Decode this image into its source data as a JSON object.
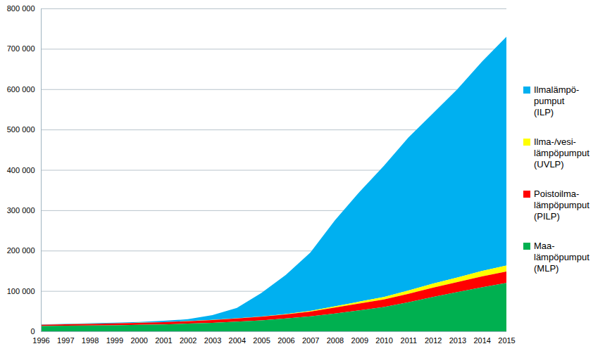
{
  "chart_data": {
    "type": "area",
    "stacked": true,
    "grid": true,
    "legend": "right",
    "x": [
      1996,
      1997,
      1998,
      1999,
      2000,
      2001,
      2002,
      2003,
      2004,
      2005,
      2006,
      2007,
      2008,
      2009,
      2010,
      2011,
      2012,
      2013,
      2014,
      2015
    ],
    "xlim": [
      1996,
      2015
    ],
    "xticks": [
      1996,
      1997,
      1998,
      1999,
      2000,
      2001,
      2002,
      2003,
      2004,
      2005,
      2006,
      2007,
      2008,
      2009,
      2010,
      2011,
      2012,
      2013,
      2014,
      2015
    ],
    "ylim": [
      0,
      800000
    ],
    "yticks": [
      0,
      {
        "value": 100000,
        "label": "100 000"
      },
      {
        "value": 200000,
        "label": "200 000"
      },
      {
        "value": 300000,
        "label": "300 000"
      },
      {
        "value": 400000,
        "label": "400 000"
      },
      {
        "value": 500000,
        "label": "500 000"
      },
      {
        "value": 600000,
        "label": "600 000"
      },
      {
        "value": 700000,
        "label": "700 000"
      },
      {
        "value": 800000,
        "label": "800 000"
      }
    ],
    "series": [
      {
        "name": "Ilmalämpö-\npumput\n(ILP)",
        "color": "#00b0f0",
        "values": [
          900,
          900,
          1400,
          1800,
          1800,
          3300,
          4700,
          11700,
          25600,
          58500,
          97200,
          144500,
          213000,
          271500,
          325000,
          379000,
          422000,
          466500,
          518500,
          567000
        ]
      },
      {
        "name": "Ilma-/vesi-\nlämpöpumput\n(UVLP)",
        "color": "#ffff00",
        "values": [
          100,
          100,
          100,
          200,
          200,
          200,
          300,
          300,
          400,
          500,
          800,
          1500,
          3000,
          4500,
          6000,
          8000,
          10000,
          11500,
          13500,
          15000
        ]
      },
      {
        "name": "Poistoilma-\nlämpöpumput\n(PILP)",
        "color": "#ff0000",
        "values": [
          3000,
          3500,
          4000,
          4500,
          5000,
          5500,
          6000,
          7000,
          8000,
          9000,
          10000,
          12000,
          15000,
          17000,
          19000,
          21000,
          23000,
          25000,
          27000,
          28000
        ]
      },
      {
        "name": "Maa-\nlämpöpumput\n(MLP)",
        "color": "#00b050",
        "values": [
          13000,
          14000,
          14500,
          15000,
          16000,
          17000,
          19000,
          21000,
          24000,
          27000,
          32000,
          37000,
          44000,
          52000,
          60000,
          72000,
          85000,
          97000,
          109000,
          120000
        ]
      }
    ]
  }
}
